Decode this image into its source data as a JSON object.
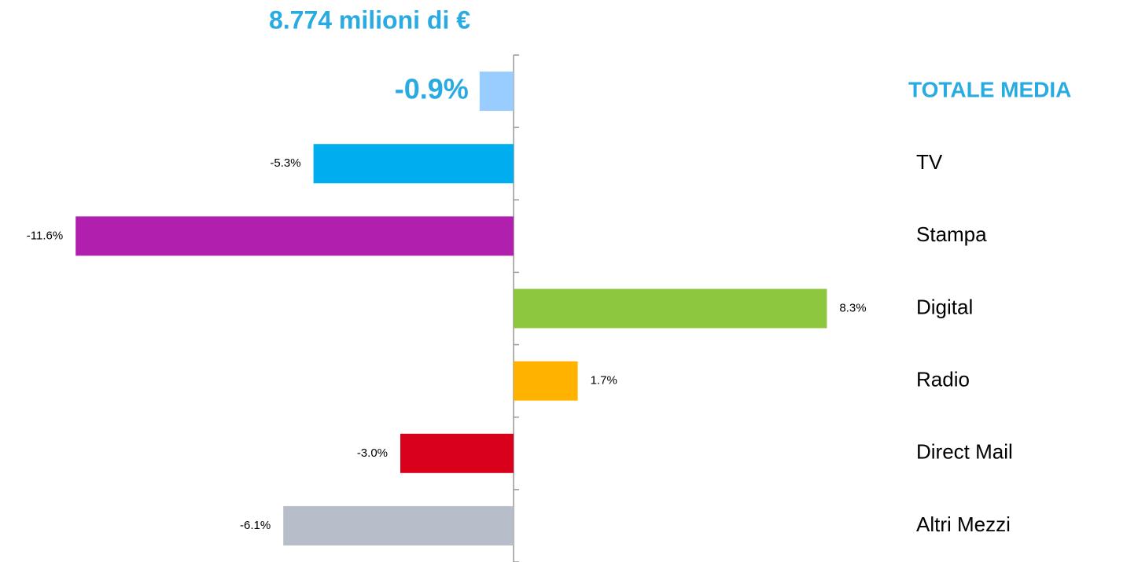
{
  "chart_data": {
    "type": "bar",
    "orientation": "horizontal",
    "title": "8.774 milioni di €",
    "categories": [
      "TOTALE MEDIA",
      "TV",
      "Stampa",
      "Digital",
      "Radio",
      "Direct Mail",
      "Altri Mezzi"
    ],
    "values": [
      -0.9,
      -5.3,
      -11.6,
      8.3,
      1.7,
      -3.0,
      -6.1
    ],
    "value_labels": [
      "-0.9%",
      "-5.3%",
      "-11.6%",
      "8.3%",
      "1.7%",
      "-3.0%",
      "-6.1%"
    ],
    "colors": [
      "#99ccff",
      "#00aeef",
      "#b01fad",
      "#8dc63f",
      "#ffb300",
      "#d9001b",
      "#b8bec9"
    ],
    "xlim": [
      -12,
      9
    ]
  }
}
